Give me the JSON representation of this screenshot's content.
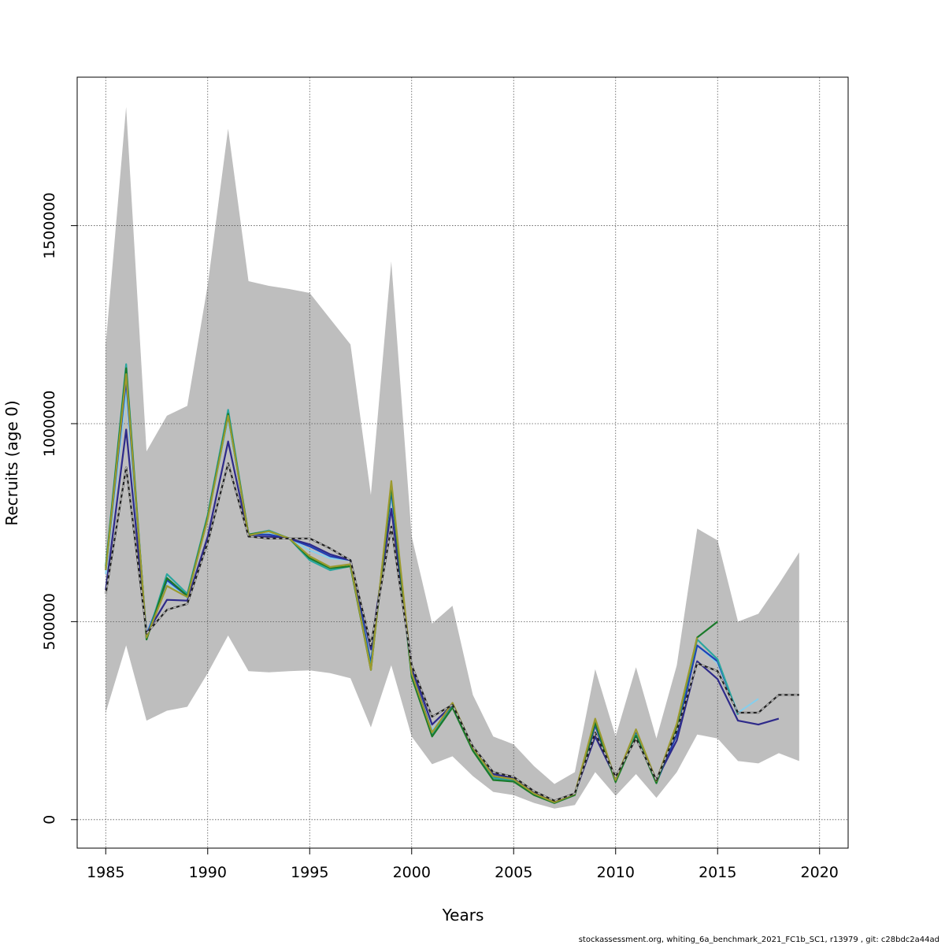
{
  "chart_data": {
    "type": "line",
    "xlabel": "Years",
    "ylabel": "Recruits (age 0)",
    "xlim": [
      1983.6,
      2021.4
    ],
    "ylim": [
      -72000,
      1875000
    ],
    "x_ticks": [
      1985,
      1990,
      1995,
      2000,
      2005,
      2010,
      2015,
      2020
    ],
    "x_tick_labels": [
      "1985",
      "1990",
      "1995",
      "2000",
      "2005",
      "2010",
      "2015",
      "2020"
    ],
    "y_ticks": [
      0,
      500000,
      1000000,
      1500000
    ],
    "y_tick_labels": [
      "0",
      "500000",
      "1000000",
      "1500000"
    ],
    "grid": true,
    "confidence_band": {
      "color": "#bebebe",
      "x": [
        1985,
        1986,
        1987,
        1988,
        1989,
        1990,
        1991,
        1992,
        1993,
        1994,
        1995,
        1996,
        1997,
        1998,
        1999,
        2000,
        2001,
        2002,
        2003,
        2004,
        2005,
        2006,
        2007,
        2008,
        2009,
        2010,
        2011,
        2012,
        2013,
        2014,
        2015,
        2016,
        2017,
        2018,
        2019
      ],
      "upper": [
        1200000,
        1800000,
        930000,
        1020000,
        1045000,
        1350000,
        1745000,
        1360000,
        1348000,
        1340000,
        1330000,
        1265000,
        1200000,
        820000,
        1410000,
        715000,
        495000,
        540000,
        315000,
        210000,
        190000,
        135000,
        90000,
        120000,
        380000,
        210000,
        385000,
        205000,
        390000,
        735000,
        705000,
        500000,
        520000,
        595000,
        675000
      ],
      "lower": [
        270000,
        440000,
        250000,
        275000,
        285000,
        370000,
        465000,
        375000,
        372000,
        375000,
        377000,
        370000,
        357000,
        233000,
        390000,
        210000,
        140000,
        160000,
        110000,
        70000,
        62000,
        42000,
        28000,
        37000,
        120000,
        60000,
        115000,
        55000,
        120000,
        215000,
        205000,
        148000,
        142000,
        168000,
        148000
      ]
    },
    "series": [
      {
        "color": "#87ceeb",
        "dashed": false,
        "x": [
          1985,
          1986,
          1987,
          1988,
          1989,
          1990,
          1991,
          1992,
          1993,
          1994,
          1995,
          1996,
          1997,
          1998,
          1999,
          2000,
          2001,
          2002,
          2003,
          2004,
          2005,
          2006,
          2007,
          2008,
          2009,
          2010,
          2011,
          2012,
          2013,
          2014,
          2015,
          2016,
          2017
        ],
        "y": [
          620000,
          1080000,
          470000,
          600000,
          560000,
          760000,
          1010000,
          720000,
          725000,
          710000,
          680000,
          660000,
          655000,
          400000,
          820000,
          375000,
          225000,
          290000,
          180000,
          110000,
          100000,
          68000,
          45000,
          65000,
          240000,
          100000,
          220000,
          95000,
          230000,
          440000,
          395000,
          270000,
          305000
        ]
      },
      {
        "color": "#1f3fb4",
        "dashed": false,
        "x": [
          1985,
          1986,
          1987,
          1988,
          1989,
          1990,
          1991,
          1992,
          1993,
          1994,
          1995,
          1996,
          1997,
          1998,
          1999,
          2000,
          2001,
          2002,
          2003,
          2004,
          2005,
          2006,
          2007,
          2008,
          2009,
          2010,
          2011,
          2012,
          2013,
          2014,
          2015,
          2016
        ],
        "y": [
          630000,
          1110000,
          465000,
          605000,
          565000,
          765000,
          1020000,
          720000,
          720000,
          710000,
          690000,
          665000,
          655000,
          395000,
          830000,
          375000,
          220000,
          288000,
          178000,
          108000,
          100000,
          66000,
          44000,
          64000,
          238000,
          98000,
          218000,
          93000,
          215000,
          440000,
          400000,
          265000
        ]
      },
      {
        "color": "#2e2a8a",
        "dashed": false,
        "x": [
          1985,
          1986,
          1987,
          1988,
          1989,
          1990,
          1991,
          1992,
          1993,
          1994,
          1995,
          1996,
          1997,
          1998,
          1999,
          2000,
          2001,
          2002,
          2003,
          2004,
          2005,
          2006,
          2007,
          2008,
          2009,
          2010,
          2011,
          2012,
          2013,
          2014,
          2015,
          2016,
          2017,
          2018
        ],
        "y": [
          580000,
          985000,
          470000,
          555000,
          553000,
          715000,
          955000,
          715000,
          715000,
          710000,
          695000,
          670000,
          655000,
          430000,
          785000,
          385000,
          240000,
          290000,
          180000,
          115000,
          105000,
          68000,
          46000,
          66000,
          210000,
          105000,
          210000,
          100000,
          200000,
          400000,
          355000,
          250000,
          240000,
          255000
        ]
      },
      {
        "color": "#2aa6a0",
        "dashed": false,
        "x": [
          1985,
          1986,
          1987,
          1988,
          1989,
          1990,
          1991,
          1992,
          1993,
          1994,
          1995,
          1996,
          1997,
          1998,
          1999,
          2000,
          2001,
          2002,
          2003,
          2004,
          2005,
          2006,
          2007,
          2008,
          2009,
          2010,
          2011,
          2012,
          2013,
          2014,
          2015,
          2016
        ],
        "y": [
          640000,
          1150000,
          455000,
          620000,
          570000,
          770000,
          1035000,
          720000,
          730000,
          710000,
          655000,
          630000,
          640000,
          385000,
          840000,
          360000,
          215000,
          285000,
          175000,
          105000,
          98000,
          64000,
          42000,
          63000,
          245000,
          96000,
          215000,
          92000,
          235000,
          455000,
          405000,
          265000
        ]
      },
      {
        "color": "#1a7a2a",
        "dashed": false,
        "x": [
          1985,
          1986,
          1987,
          1988,
          1989,
          1990,
          1991,
          1992,
          1993,
          1994,
          1995,
          1996,
          1997,
          1998,
          1999,
          2000,
          2001,
          2002,
          2003,
          2004,
          2005,
          2006,
          2007,
          2008,
          2009,
          2010,
          2011,
          2012,
          2013,
          2014,
          2015
        ],
        "y": [
          635000,
          1140000,
          455000,
          610000,
          565000,
          765000,
          1025000,
          720000,
          728000,
          710000,
          660000,
          635000,
          640000,
          378000,
          845000,
          360000,
          210000,
          283000,
          174000,
          100000,
          96000,
          62000,
          42000,
          62000,
          245000,
          95000,
          212000,
          92000,
          238000,
          460000,
          500000
        ]
      },
      {
        "color": "#9c9a2e",
        "dashed": false,
        "x": [
          1985,
          1986,
          1987,
          1988,
          1989,
          1990,
          1991,
          1992,
          1993,
          1994,
          1995,
          1996,
          1997,
          1998,
          1999,
          2000,
          2001,
          2002,
          2003,
          2004,
          2005,
          2006,
          2007,
          2008,
          2009,
          2010,
          2011,
          2012,
          2013,
          2014
        ],
        "y": [
          630000,
          1125000,
          460000,
          590000,
          562000,
          760000,
          1020000,
          718000,
          728000,
          710000,
          665000,
          638000,
          645000,
          378000,
          855000,
          370000,
          220000,
          295000,
          182000,
          110000,
          102000,
          66000,
          44000,
          65000,
          255000,
          100000,
          228000,
          98000,
          242000,
          460000
        ]
      },
      {
        "color": "#222222",
        "dashed": false,
        "x": [
          1985,
          1986,
          1987,
          1988,
          1989,
          1990,
          1991,
          1992,
          1993,
          1994,
          1995,
          1996,
          1997,
          1998,
          1999,
          2000,
          2001,
          2002,
          2003,
          2004,
          2005,
          2006,
          2007,
          2008,
          2009,
          2010,
          2011,
          2012,
          2013,
          2014,
          2015,
          2016,
          2017,
          2018,
          2019
        ],
        "y": [
          570000,
          890000,
          470000,
          530000,
          545000,
          700000,
          900000,
          715000,
          710000,
          710000,
          710000,
          685000,
          655000,
          440000,
          740000,
          390000,
          260000,
          290000,
          185000,
          120000,
          108000,
          72000,
          48000,
          66000,
          220000,
          108000,
          205000,
          100000,
          225000,
          395000,
          375000,
          270000,
          270000,
          315000,
          315000
        ]
      },
      {
        "color": "#bbbbbb",
        "dashed": true,
        "x": [
          1985,
          1986,
          1987,
          1988,
          1989,
          1990,
          1991,
          1992,
          1993,
          1994,
          1995,
          1996,
          1997,
          1998,
          1999,
          2000,
          2001,
          2002,
          2003,
          2004,
          2005,
          2006,
          2007,
          2008,
          2009,
          2010,
          2011,
          2012,
          2013,
          2014,
          2015,
          2016,
          2017,
          2018,
          2019
        ],
        "y": [
          570000,
          890000,
          470000,
          530000,
          545000,
          700000,
          900000,
          715000,
          710000,
          710000,
          710000,
          685000,
          655000,
          440000,
          740000,
          390000,
          260000,
          290000,
          185000,
          120000,
          108000,
          72000,
          48000,
          66000,
          220000,
          108000,
          205000,
          100000,
          225000,
          395000,
          375000,
          270000,
          270000,
          315000,
          315000
        ]
      }
    ]
  },
  "footer_text": "stockassessment.org, whiting_6a_benchmark_2021_FC1b_SC1, r13979 , git: c28bdc2a44ad"
}
